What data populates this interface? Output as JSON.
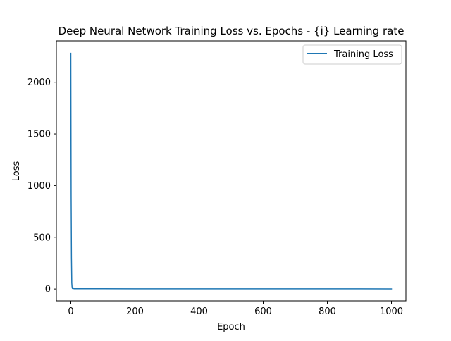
{
  "chart_data": {
    "type": "line",
    "title": "Deep Neural Network Training Loss vs. Epochs - {i} Learning rate",
    "xlabel": "Epoch",
    "ylabel": "Loss",
    "xlim": [
      -45,
      1045
    ],
    "ylim": [
      -115,
      2400
    ],
    "xticks": [
      0,
      200,
      400,
      600,
      800,
      1000
    ],
    "yticks": [
      0,
      500,
      1000,
      1500,
      2000
    ],
    "grid": false,
    "legend": {
      "placement": "upper-right",
      "entries": [
        "Training Loss"
      ]
    },
    "series": [
      {
        "name": "Training Loss",
        "color": "#1f77b4",
        "x": [
          0,
          1,
          2,
          3,
          4,
          5,
          10,
          50,
          100,
          200,
          300,
          400,
          500,
          600,
          700,
          800,
          900,
          1000
        ],
        "y": [
          2280,
          900,
          300,
          60,
          12,
          5,
          3,
          2.5,
          2.2,
          2,
          1.8,
          1.7,
          1.6,
          1.5,
          1.5,
          1.4,
          1.4,
          1.3
        ]
      }
    ]
  }
}
